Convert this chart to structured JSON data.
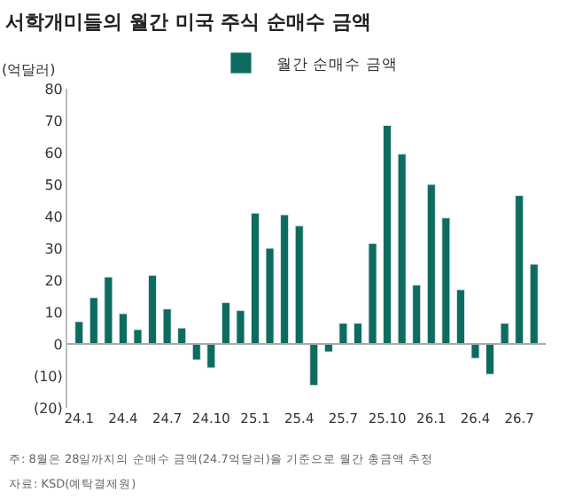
{
  "chart_data": {
    "type": "bar",
    "title": "서학개미들의 월간 미국 주식 순매수 금액",
    "ylabel": "(억달러)",
    "categories": [
      "24.1",
      null,
      null,
      "24.4",
      null,
      null,
      "24.7",
      null,
      null,
      "24.10",
      null,
      null,
      "25.1",
      null,
      null,
      "25.4",
      null,
      null,
      "25.7",
      null,
      null,
      "25.10",
      null,
      null,
      "26.1",
      null,
      null,
      "26.4",
      null,
      null,
      "26.7",
      null
    ],
    "series": [
      {
        "name": "월간 순매수 금액",
        "color": "#0e6b5f",
        "values": [
          7,
          14.5,
          21,
          9.5,
          4.5,
          21.5,
          11,
          5,
          -5,
          -7.5,
          13,
          10.5,
          41,
          30,
          40.5,
          37,
          -13,
          -2.5,
          6.5,
          6.5,
          31.5,
          68.5,
          59.5,
          18.5,
          50,
          39.5,
          17,
          -4.5,
          -9.5,
          6.5,
          46.5,
          25
        ]
      }
    ],
    "ylim": [
      -20,
      80
    ],
    "yticks": [
      {
        "value": -20,
        "label": "(20)"
      },
      {
        "value": -10,
        "label": "(10)"
      },
      0,
      10,
      20,
      30,
      40,
      50,
      60,
      70,
      80
    ],
    "ref_lines": [
      {
        "axis": "y",
        "value": 0,
        "color": "#aaaaaa"
      }
    ],
    "legend": "top",
    "annotations": [
      "주: 8월은 28일까지의 순매수 금액(24.7억달러)을 기준으로 월간 총금액 추정",
      "자료: KSD(예탁결제원)"
    ]
  }
}
